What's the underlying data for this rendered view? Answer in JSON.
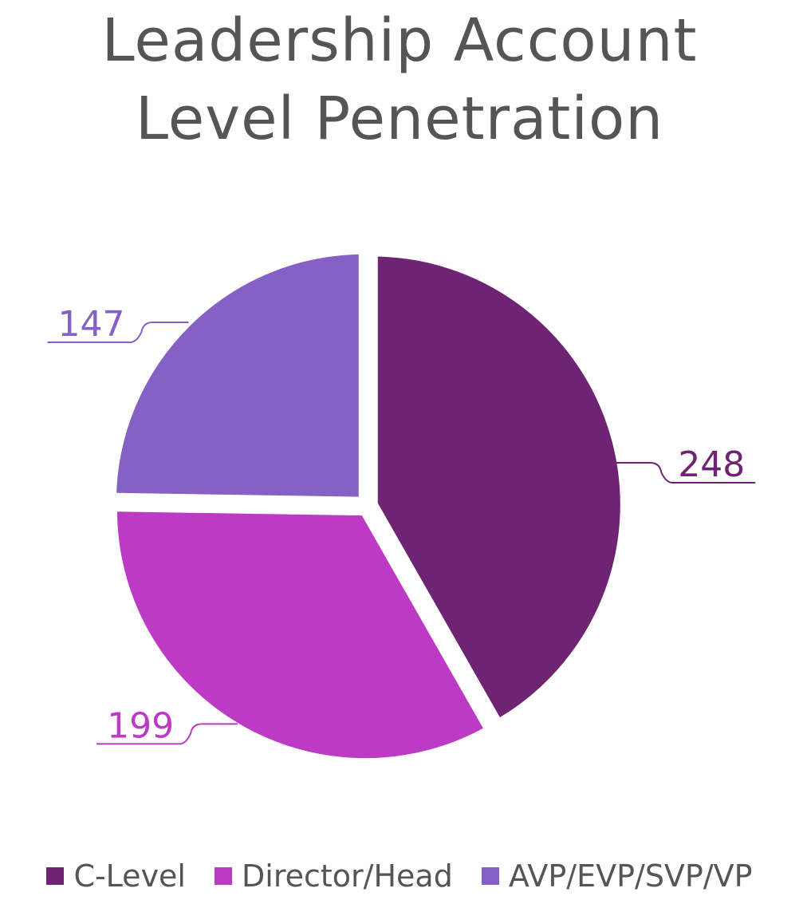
{
  "chart_data": {
    "type": "pie",
    "title": "Leadership Account Level Penetration",
    "categories": [
      "C-Level",
      "Director/Head",
      "AVP/EVP/SVP/VP"
    ],
    "values": [
      248,
      199,
      147
    ],
    "colors": [
      "#6e2472",
      "#bd3ac4",
      "#8661c5"
    ],
    "legend": "bottom"
  }
}
